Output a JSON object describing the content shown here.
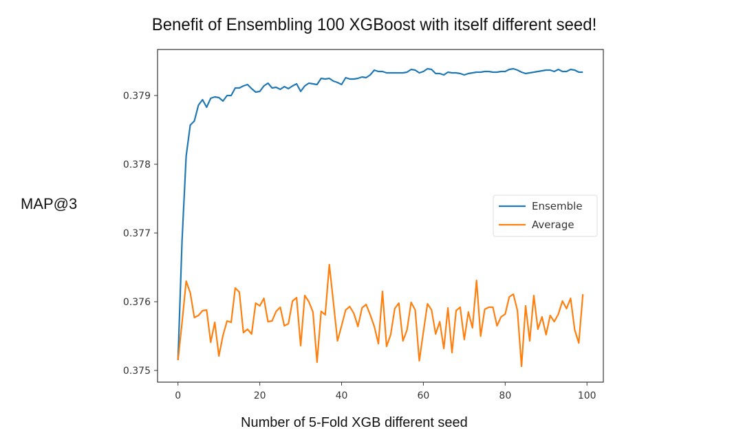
{
  "chart_data": {
    "type": "line",
    "title": "Benefit of Ensembling 100 XGBoost with itself different seed!",
    "xlabel": "Number of 5-Fold XGB different seed",
    "ylabel": "MAP@3",
    "xlim": [
      -5,
      104
    ],
    "ylim": [
      0.37483,
      0.37967
    ],
    "xticks": [
      0,
      20,
      40,
      60,
      80,
      100
    ],
    "xtick_labels": [
      "0",
      "20",
      "40",
      "60",
      "80",
      "100"
    ],
    "yticks": [
      0.375,
      0.376,
      0.377,
      0.378,
      0.379
    ],
    "ytick_labels": [
      "0.375",
      "0.376",
      "0.377",
      "0.378",
      "0.379"
    ],
    "grid": false,
    "legend_position": "center-right",
    "series": [
      {
        "name": "Ensemble",
        "color": "#1f77b4",
        "values": [
          0.37515,
          0.3769,
          0.37812,
          0.37857,
          0.37863,
          0.37886,
          0.37894,
          0.37883,
          0.37896,
          0.37898,
          0.37897,
          0.37892,
          0.379,
          0.379,
          0.37911,
          0.37911,
          0.37914,
          0.37916,
          0.3791,
          0.37905,
          0.37906,
          0.37914,
          0.37918,
          0.37911,
          0.37912,
          0.37909,
          0.37913,
          0.3791,
          0.37914,
          0.37917,
          0.37906,
          0.37914,
          0.37918,
          0.37917,
          0.37916,
          0.37925,
          0.37924,
          0.37925,
          0.37921,
          0.37919,
          0.37916,
          0.37926,
          0.37924,
          0.37924,
          0.37925,
          0.37927,
          0.37926,
          0.3793,
          0.37937,
          0.37935,
          0.37935,
          0.37933,
          0.37933,
          0.37933,
          0.37933,
          0.37933,
          0.37934,
          0.37938,
          0.37937,
          0.37933,
          0.37935,
          0.37939,
          0.37938,
          0.37932,
          0.37932,
          0.3793,
          0.37934,
          0.37933,
          0.37933,
          0.37932,
          0.3793,
          0.37932,
          0.37933,
          0.37934,
          0.37934,
          0.37935,
          0.37935,
          0.37934,
          0.37934,
          0.37935,
          0.37935,
          0.37938,
          0.37939,
          0.37937,
          0.37934,
          0.37932,
          0.37933,
          0.37934,
          0.37935,
          0.37936,
          0.37937,
          0.37937,
          0.37935,
          0.37938,
          0.37935,
          0.37935,
          0.37938,
          0.37937,
          0.37934,
          0.37934
        ]
      },
      {
        "name": "Average",
        "color": "#ff7f0e",
        "values": [
          0.37515,
          0.3757,
          0.3763,
          0.37613,
          0.37577,
          0.3758,
          0.37587,
          0.37588,
          0.37541,
          0.3757,
          0.37521,
          0.37551,
          0.37572,
          0.3757,
          0.3762,
          0.37614,
          0.37555,
          0.3756,
          0.37553,
          0.37598,
          0.37594,
          0.37605,
          0.37571,
          0.37572,
          0.37586,
          0.37592,
          0.37565,
          0.37568,
          0.37601,
          0.37606,
          0.37536,
          0.37609,
          0.376,
          0.37585,
          0.37512,
          0.37586,
          0.37581,
          0.37654,
          0.37599,
          0.37543,
          0.37565,
          0.37588,
          0.37593,
          0.37583,
          0.37564,
          0.37591,
          0.37596,
          0.37581,
          0.37564,
          0.37539,
          0.37615,
          0.37535,
          0.37552,
          0.3759,
          0.37598,
          0.37543,
          0.37559,
          0.37599,
          0.37588,
          0.37514,
          0.37556,
          0.37597,
          0.37588,
          0.37553,
          0.37571,
          0.37532,
          0.37591,
          0.37526,
          0.37587,
          0.37592,
          0.37545,
          0.37585,
          0.37562,
          0.37631,
          0.3755,
          0.37589,
          0.37592,
          0.37592,
          0.37565,
          0.37578,
          0.37582,
          0.37607,
          0.37611,
          0.37587,
          0.37506,
          0.37594,
          0.37543,
          0.37609,
          0.3756,
          0.37578,
          0.37552,
          0.3758,
          0.37571,
          0.37582,
          0.37601,
          0.3759,
          0.37605,
          0.37559,
          0.3754,
          0.37611
        ]
      }
    ]
  }
}
